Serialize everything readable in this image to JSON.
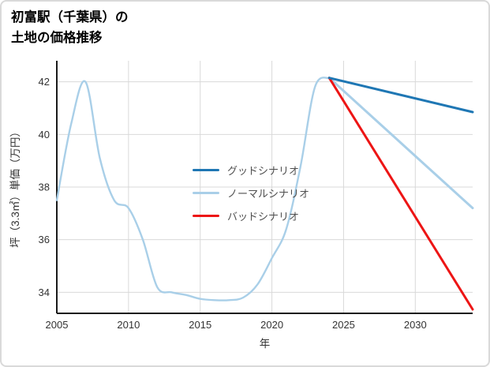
{
  "title": {
    "line1": "初富駅（千葉県）の",
    "line2": "土地の価格推移"
  },
  "chart_data": {
    "type": "line",
    "title": "初富駅（千葉県）の土地の価格推移",
    "xlabel": "年",
    "ylabel": "坪（3.3㎡）単価（万円）",
    "xlim": [
      2005,
      2034
    ],
    "ylim": [
      33.2,
      42.8
    ],
    "x_ticks": [
      2005,
      2010,
      2015,
      2020,
      2025,
      2030
    ],
    "y_ticks": [
      34,
      36,
      38,
      40,
      42
    ],
    "grid": true,
    "legend_position": "inside-center-left",
    "legend": [
      {
        "label": "グッドシナリオ",
        "color": "#1f77b4"
      },
      {
        "label": "ノーマルシナリオ",
        "color": "#a9cfe8"
      },
      {
        "label": "バッドシナリオ",
        "color": "#ed1515"
      }
    ],
    "series": [
      {
        "name": "ノーマルシナリオ（実績）",
        "color": "#a9cfe8",
        "width": 2.4,
        "x": [
          2005,
          2006,
          2007,
          2008,
          2009,
          2010,
          2011,
          2012,
          2013,
          2014,
          2015,
          2016,
          2017,
          2018,
          2019,
          2020,
          2021,
          2022,
          2023,
          2024
        ],
        "y": [
          37.5,
          40.4,
          42.0,
          39.1,
          37.5,
          37.2,
          36.0,
          34.2,
          34.0,
          33.9,
          33.75,
          33.7,
          33.7,
          33.8,
          34.3,
          35.3,
          36.4,
          38.8,
          41.8,
          42.15
        ]
      },
      {
        "name": "ノーマルシナリオ（予測）",
        "color": "#a9cfe8",
        "width": 3,
        "x": [
          2024,
          2034
        ],
        "y": [
          42.15,
          37.2
        ]
      },
      {
        "name": "バッドシナリオ",
        "color": "#ed1515",
        "width": 3,
        "x": [
          2024,
          2034
        ],
        "y": [
          42.15,
          33.35
        ]
      },
      {
        "name": "グッドシナリオ",
        "color": "#1f77b4",
        "width": 3,
        "x": [
          2024,
          2034
        ],
        "y": [
          42.15,
          40.85
        ]
      }
    ]
  }
}
